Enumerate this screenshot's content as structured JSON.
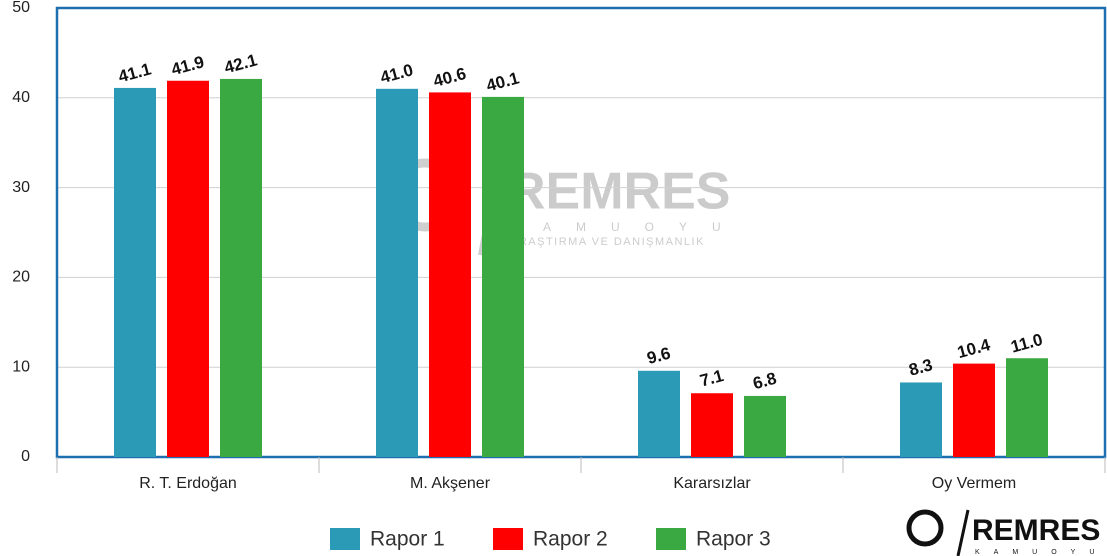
{
  "chart_data": {
    "type": "bar",
    "categories": [
      "R. T. Erdoğan",
      "M. Akşener",
      "Kararsızlar",
      "Oy Vermem"
    ],
    "series": [
      {
        "name": "Rapor 1",
        "color": "#2b9ab6",
        "values": [
          41.1,
          41,
          9.6,
          8.3
        ],
        "value_labels": [
          "41.1",
          "41.0",
          "9.6",
          "8.3"
        ]
      },
      {
        "name": "Rapor 2",
        "color": "#ff0000",
        "values": [
          41.9,
          40.6,
          7.1,
          10.4
        ],
        "value_labels": [
          "41.9",
          "40.6",
          "7.1",
          "10.4"
        ]
      },
      {
        "name": "Rapor 3",
        "color": "#3ba941",
        "values": [
          42.1,
          40.1,
          6.8,
          11
        ],
        "value_labels": [
          "42.1",
          "40.1",
          "6.8",
          "11.0"
        ]
      }
    ],
    "ylim": [
      0,
      50
    ],
    "yticks": [
      0,
      10,
      20,
      30,
      40,
      50
    ],
    "grid": true,
    "legend": "bottom",
    "logo": {
      "name": "REMRES",
      "tagline": "KAMUOYU",
      "subtitle": "ARAŞTIRMA VE DANIŞMANLIK"
    }
  }
}
